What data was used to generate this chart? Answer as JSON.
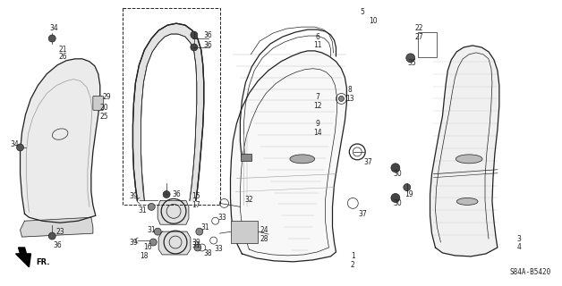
{
  "background_color": "#ffffff",
  "diagram_code": "S84A-B5420",
  "line_color": "#222222",
  "fill_light": "#f5f5f5",
  "fill_hatch": "#e8e8e8"
}
